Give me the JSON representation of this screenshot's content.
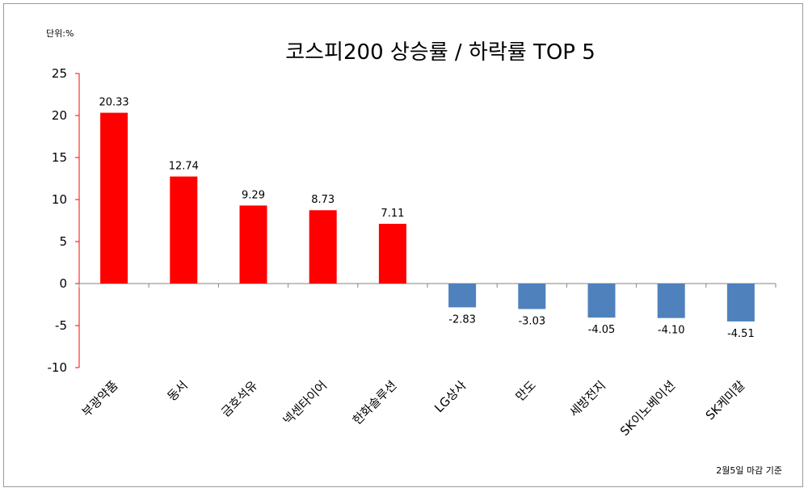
{
  "chart_data": {
    "type": "bar",
    "title": "코스피200 상승률 / 하락률  TOP 5",
    "unit_label": "단위:%",
    "footnote": "2월5일 마감 기준",
    "categories": [
      "부광약품",
      "동서",
      "금호석유",
      "넥센타이어",
      "한화솔루션",
      "LG상사",
      "만도",
      "세방전지",
      "SK이노베이션",
      "SK케미칼"
    ],
    "values": [
      20.33,
      12.74,
      9.29,
      8.73,
      7.11,
      -2.83,
      -3.03,
      -4.05,
      -4.1,
      -4.51
    ],
    "value_labels": [
      "20.33",
      "12.74",
      "9.29",
      "8.73",
      "7.11",
      "-2.83",
      "-3.03",
      "-4.05",
      "-4.10",
      "-4.51"
    ],
    "ylim": [
      -10,
      25
    ],
    "yticks": [
      25,
      20,
      15,
      10,
      5,
      0,
      -5,
      -10
    ],
    "colors": {
      "positive": "#ff0000",
      "negative": "#4f81bd",
      "axis": "#ff0000",
      "baseline": "#868686"
    }
  }
}
